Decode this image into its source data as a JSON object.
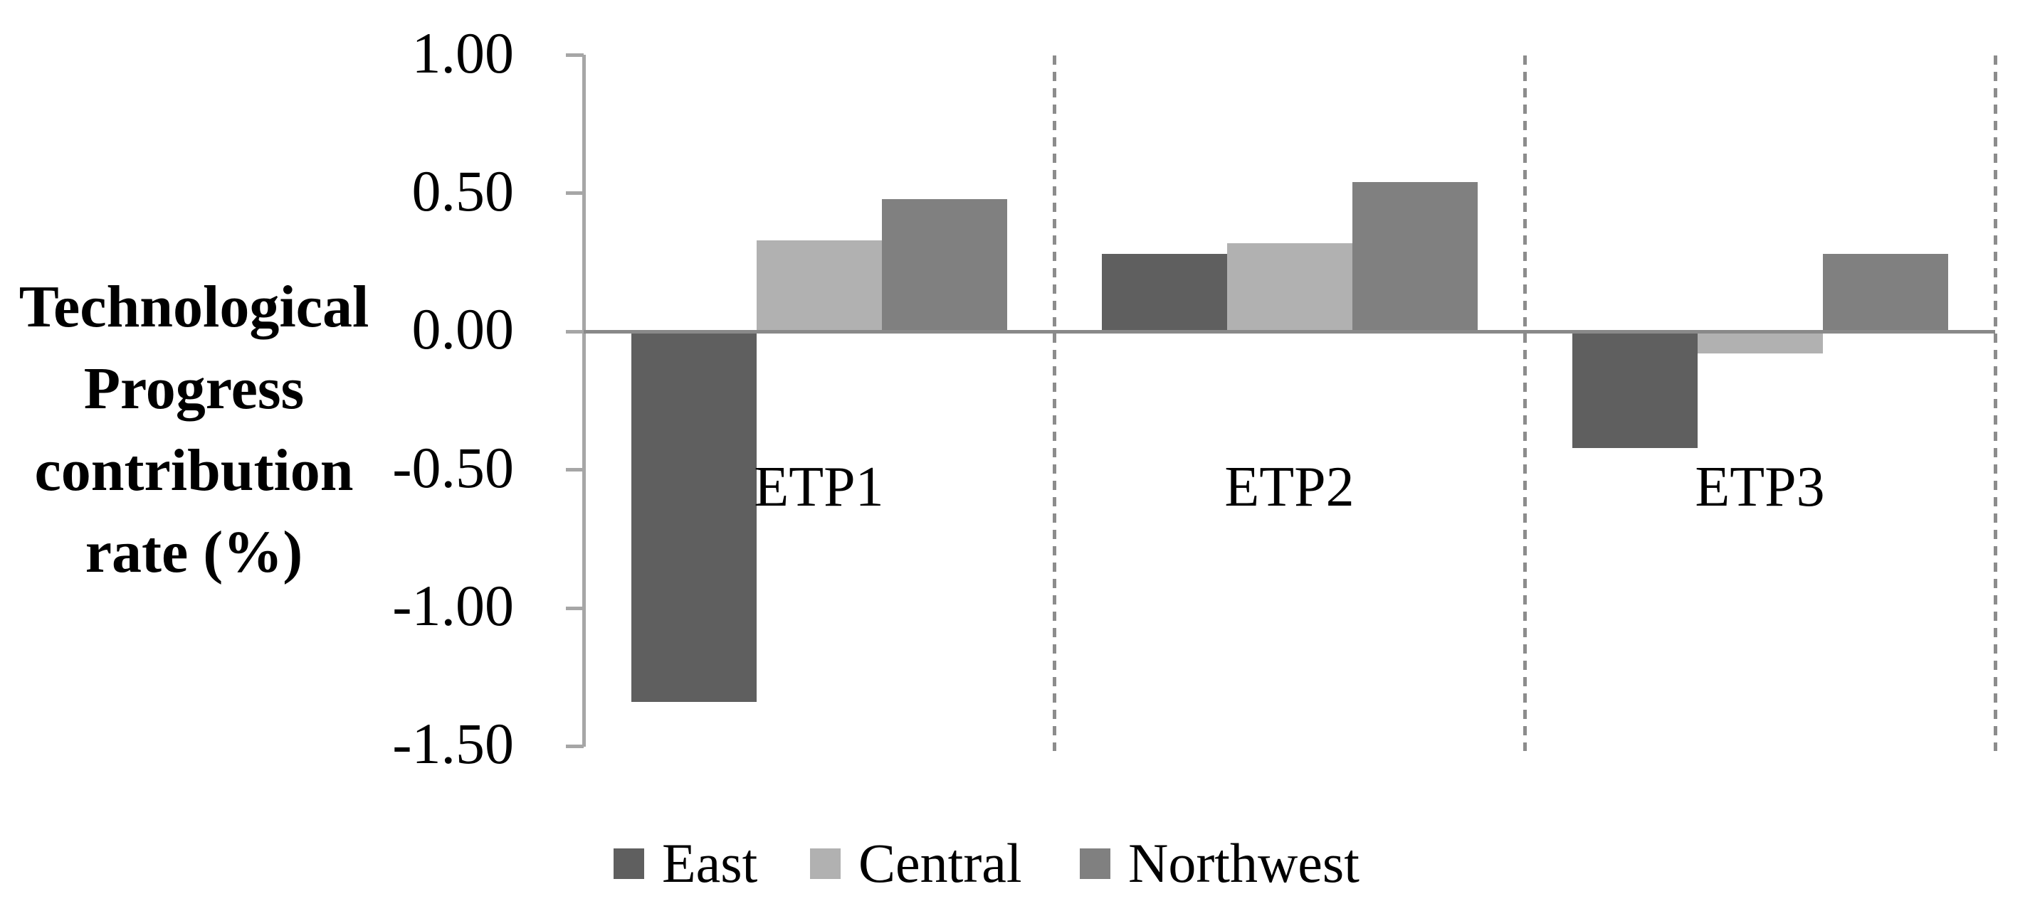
{
  "chart_data": {
    "type": "bar",
    "title": "",
    "categories": [
      "ETP1",
      "ETP2",
      "ETP3"
    ],
    "series": [
      {
        "name": "East",
        "color": "#5f5f5f",
        "values": [
          -1.34,
          0.28,
          -0.42
        ]
      },
      {
        "name": "Central",
        "color": "#b1b1b1",
        "values": [
          0.33,
          0.32,
          -0.08
        ]
      },
      {
        "name": "Northwest",
        "color": "#808080",
        "values": [
          0.48,
          0.54,
          0.28
        ]
      }
    ],
    "ylabel": "Technological\nProgress\ncontribution\nrate (%)",
    "yticks": [
      {
        "value": 1.0,
        "label": "1.00"
      },
      {
        "value": 0.5,
        "label": "0.50"
      },
      {
        "value": 0.0,
        "label": "0.00"
      },
      {
        "value": -0.5,
        "label": "-0.50"
      },
      {
        "value": -1.0,
        "label": "-1.00"
      },
      {
        "value": -1.5,
        "label": "-1.50"
      }
    ],
    "ylim": [
      -1.5,
      1.0
    ],
    "grid": false,
    "legend_position": "bottom",
    "group_dividers": "dashed",
    "colors": {
      "axis": "#a6a6a6",
      "baseline": "#898989",
      "divider": "#8c8c8c",
      "text": "#000000",
      "background": "#ffffff"
    }
  }
}
